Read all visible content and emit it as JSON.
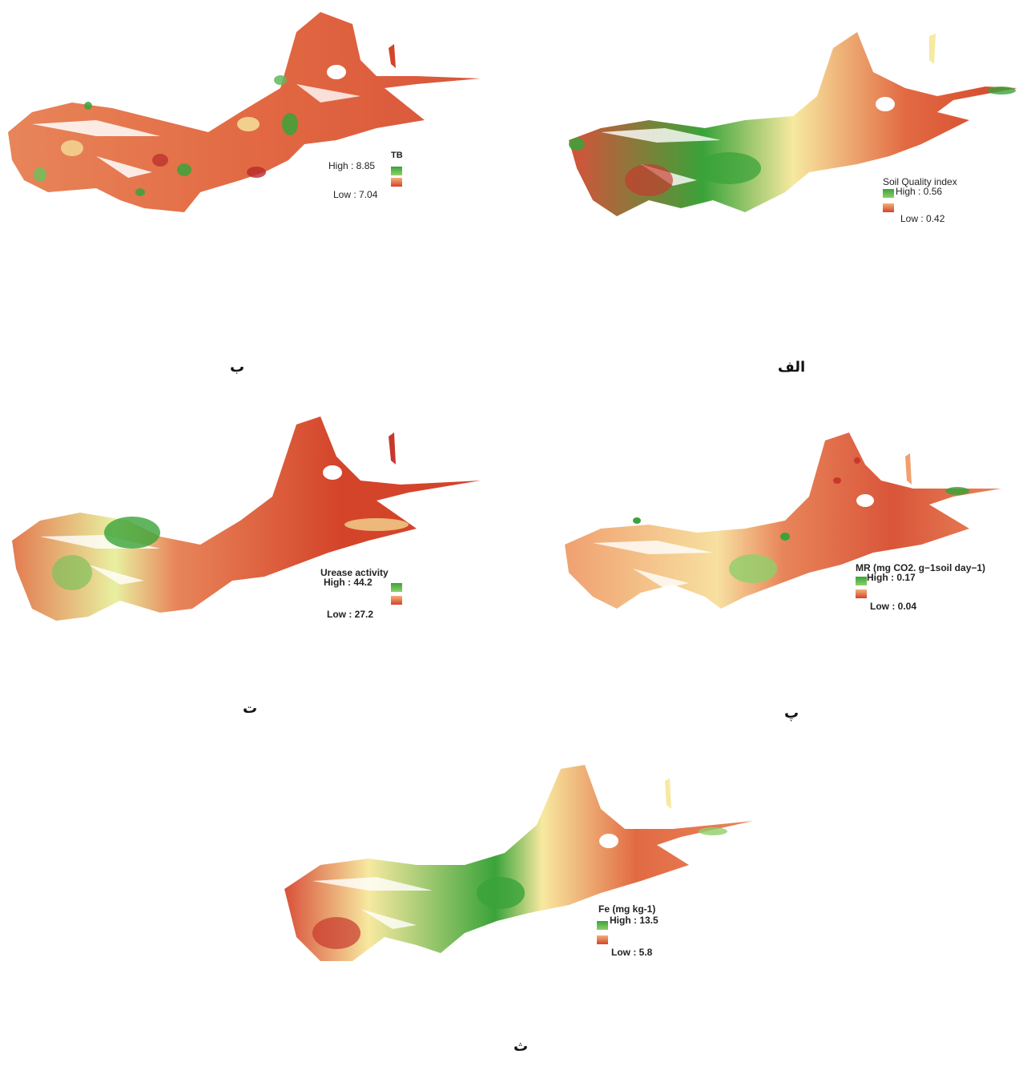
{
  "panels": [
    {
      "key": "b",
      "caption": "ب",
      "legend": {
        "title": "TB",
        "high": "High : 8.85",
        "low": "Low : 7.04"
      }
    },
    {
      "key": "alef",
      "caption": "الف",
      "legend": {
        "title": "Soil Quality index",
        "high": "High : 0.56",
        "low": "Low : 0.42"
      }
    },
    {
      "key": "te",
      "caption": "ت",
      "legend": {
        "title": "Urease activity",
        "high": "High : 44.2",
        "low": "Low : 27.2"
      }
    },
    {
      "key": "pe",
      "caption": "پ",
      "legend": {
        "title": "MR (mg CO2. g−1soil day−1)",
        "high": "High : 0.17",
        "low": "Low : 0.04"
      }
    },
    {
      "key": "se",
      "caption": "ث",
      "legend": {
        "title": "Fe (mg kg-1)",
        "high": "High : 13.5",
        "low": "Low : 5.8"
      }
    }
  ],
  "colors": {
    "high": "#3aa33a",
    "mid": "#f7e9a0",
    "low": "#d4442a"
  }
}
